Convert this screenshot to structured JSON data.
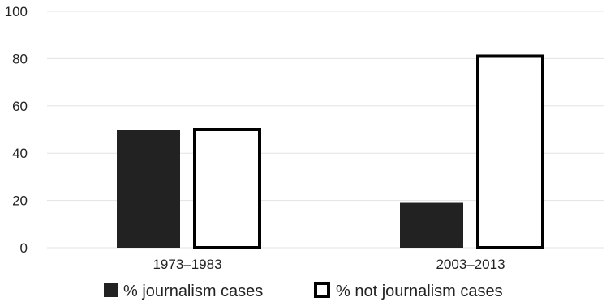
{
  "colors": {
    "filled_bar": "#222222",
    "outline_bar_fill": "#ffffff",
    "outline_bar_stroke": "#000000",
    "grid": "#e3e3e3",
    "text": "#222222"
  },
  "chart_data": {
    "type": "bar",
    "title": "",
    "xlabel": "",
    "ylabel": "",
    "categories": [
      "1973–1983",
      "2003–2013"
    ],
    "series": [
      {
        "name": "% journalism cases",
        "values": [
          50,
          19
        ]
      },
      {
        "name": "% not journalism cases",
        "values": [
          50,
          81
        ]
      }
    ],
    "ylim": [
      0,
      100
    ],
    "yticks": [
      0,
      20,
      40,
      60,
      80,
      100
    ],
    "grid": true,
    "legend_position": "bottom-center"
  }
}
